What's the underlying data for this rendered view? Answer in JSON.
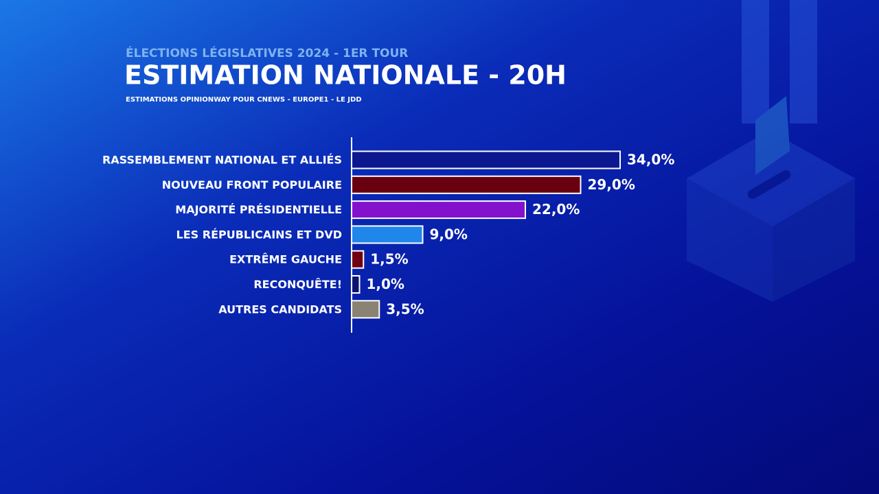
{
  "chart_data": {
    "type": "bar",
    "orientation": "horizontal",
    "kicker": "ÉLECTIONS LÉGISLATIVES 2024 - 1ER TOUR",
    "title": "ESTIMATION NATIONALE - 20H",
    "subtitle": "ESTIMATIONS OPINIONWAY POUR CNEWS - EUROPE1 - LE JDD",
    "categories": [
      "RASSEMBLEMENT NATIONAL ET ALLIÉS",
      "NOUVEAU FRONT POPULAIRE",
      "MAJORITÉ PRÉSIDENTIELLE",
      "LES RÉPUBLICAINS ET DVD",
      "EXTRÊME GAUCHE",
      "RECONQUÊTE!",
      "AUTRES CANDIDATS"
    ],
    "values": [
      34.0,
      29.0,
      22.0,
      9.0,
      1.5,
      1.0,
      3.5
    ],
    "value_labels": [
      "34,0%",
      "29,0%",
      "22,0%",
      "9,0%",
      "1,5%",
      "1,0%",
      "3,5%"
    ],
    "colors": [
      "#0b1890",
      "#680010",
      "#8412cc",
      "#1f86ea",
      "#720012",
      "#0c1470",
      "#8a8272"
    ]
  }
}
